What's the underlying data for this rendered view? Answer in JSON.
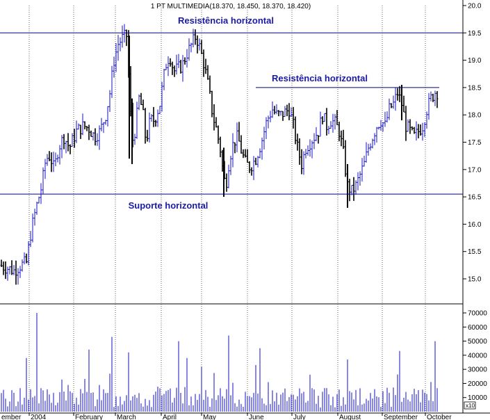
{
  "colors": {
    "price_up": "#1010c8",
    "price_down": "#000000",
    "volume": "#1010c8",
    "level_line": "#000080",
    "annotation": "#1a1aa6",
    "grid": "#000000",
    "axis": "#000000",
    "background": "#ffffff"
  },
  "chart_data": [
    {
      "type": "bar",
      "subtype": "ohlc",
      "title": "1 PT MULTIMEDIA(18.370, 18.450, 18.370, 18.420)",
      "ylim": [
        14.6,
        20.1
      ],
      "y_ticks": [
        15.0,
        15.5,
        16.0,
        16.5,
        17.0,
        17.5,
        18.0,
        18.5,
        19.0,
        19.5,
        20.0
      ],
      "y_tick_labels": [
        "15.0",
        "15.5",
        "16.0",
        "16.5",
        "17.0",
        "17.5",
        "18.0",
        "18.5",
        "19.0",
        "19.5",
        "20.0"
      ],
      "x_labels": [
        "ember",
        "2004",
        "February",
        "March",
        "April",
        "May",
        "June",
        "July",
        "August",
        "September",
        "October"
      ],
      "grid": "vertical dotted at month starts",
      "levels": [
        {
          "label": "Resistência horizontal",
          "value": 19.5,
          "range": "full"
        },
        {
          "label": "Resistência horizontal",
          "value": 18.5,
          "range": "June–October"
        },
        {
          "label": "Suporte horizontal",
          "value": 16.55,
          "range": "full"
        }
      ],
      "key_points": [
        {
          "date": "Dec 2003",
          "price": 15.2
        },
        {
          "date": "early Jan 2004",
          "price": 15.6
        },
        {
          "date": "mid Jan 2004",
          "price": 17.3
        },
        {
          "date": "early Mar 2004",
          "price": 19.6
        },
        {
          "date": "mid Mar 2004",
          "price": 17.5
        },
        {
          "date": "late Apr 2004",
          "price": 19.4
        },
        {
          "date": "mid May 2004",
          "price": 16.6
        },
        {
          "date": "mid Jun 2004",
          "price": 18.1
        },
        {
          "date": "early Aug 2004",
          "price": 16.5
        },
        {
          "date": "mid Sep 2004",
          "price": 18.5
        },
        {
          "date": "Oct 2004",
          "price": 18.42
        }
      ]
    },
    {
      "type": "bar",
      "subtype": "volume",
      "ylim": [
        0,
        75000
      ],
      "y_ticks": [
        10000,
        20000,
        30000,
        40000,
        50000,
        60000,
        70000
      ],
      "y_tick_labels": [
        "10000",
        "20000",
        "30000",
        "40000",
        "50000",
        "60000",
        "70000"
      ],
      "scale_badge": "x10",
      "peaks": [
        70000,
        53000,
        54000,
        52000,
        50000
      ]
    }
  ]
}
